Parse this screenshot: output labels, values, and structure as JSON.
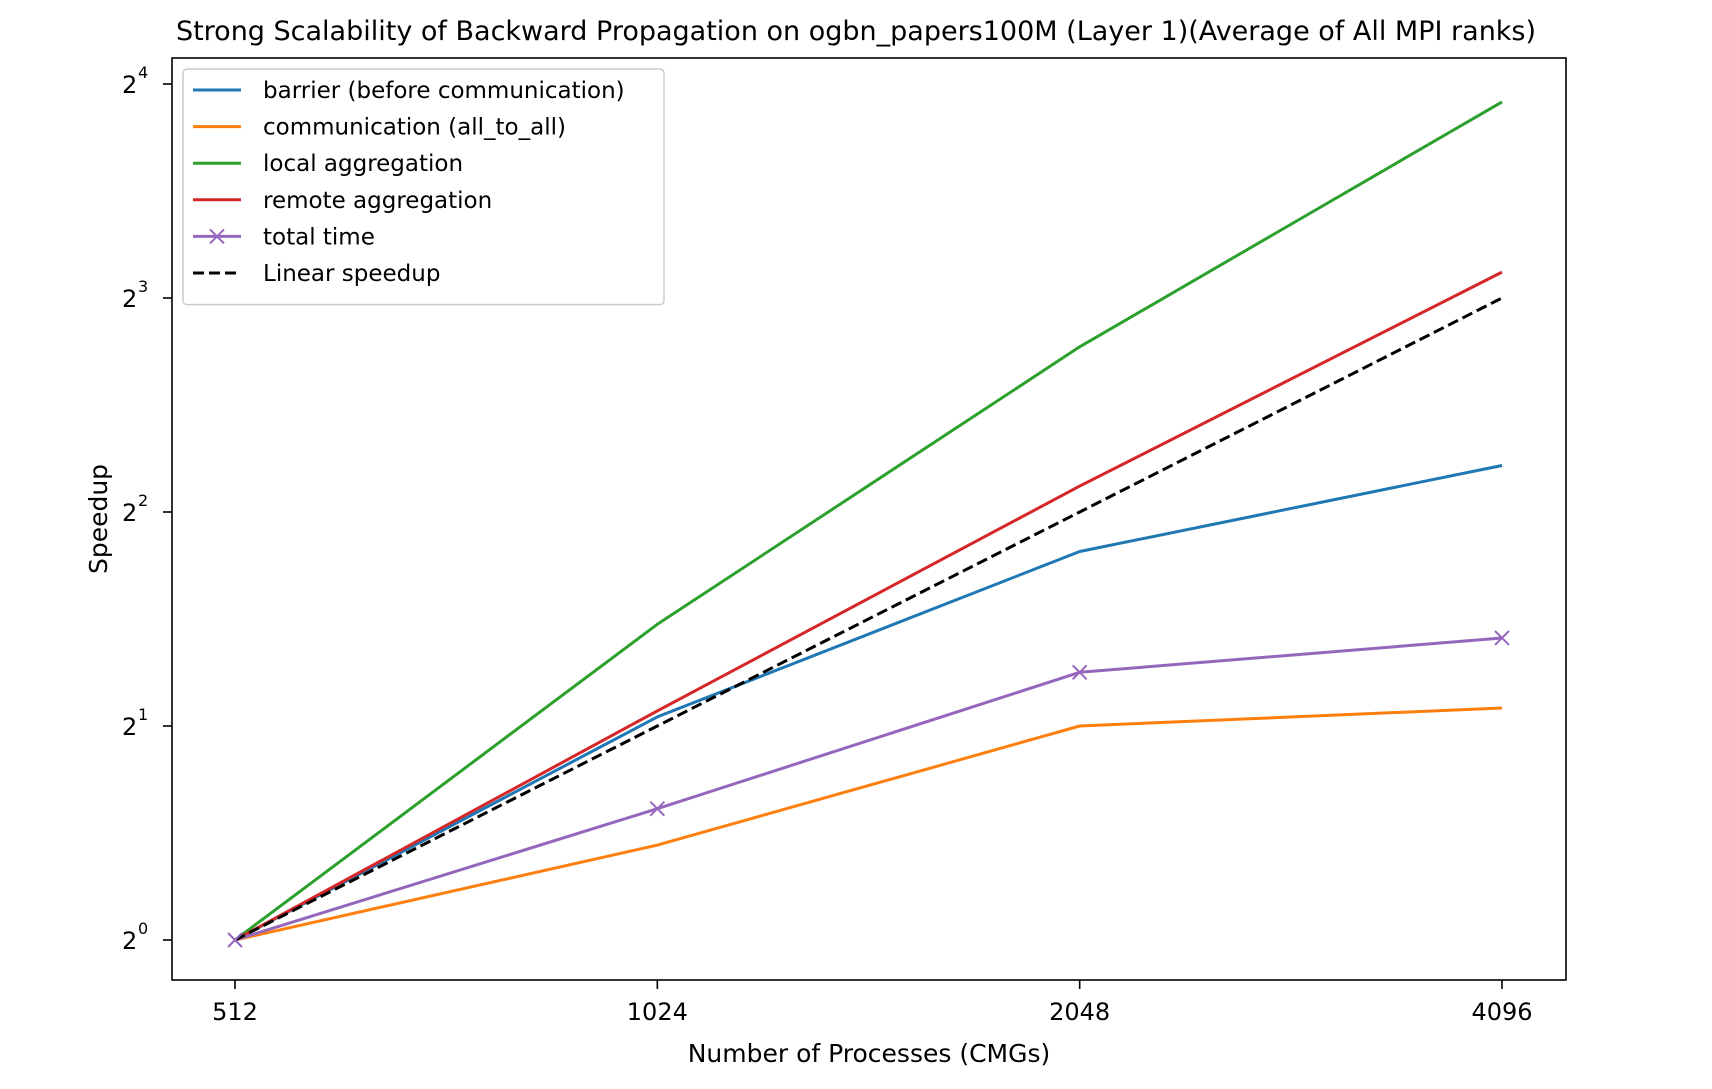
{
  "chart_data": {
    "type": "line",
    "title": "Strong Scalability of Backward Propagation on ogbn_papers100M (Layer 1)(Average of All MPI ranks)",
    "xlabel": "Number of Processes (CMGs)",
    "ylabel": "Speedup",
    "x": [
      512,
      1024,
      2048,
      4096
    ],
    "x_tick_labels": [
      "512",
      "1024",
      "2048",
      "4096"
    ],
    "y_scale": "log2",
    "ylim": [
      0.96,
      17.0
    ],
    "y_ticks": [
      {
        "value": 1,
        "base": "2",
        "exp": "0"
      },
      {
        "value": 2,
        "base": "2",
        "exp": "1"
      },
      {
        "value": 4,
        "base": "2",
        "exp": "2"
      },
      {
        "value": 8,
        "base": "2",
        "exp": "3"
      },
      {
        "value": 16,
        "base": "2",
        "exp": "4"
      }
    ],
    "grid": false,
    "legend_position": "upper-left",
    "series": [
      {
        "name": "barrier (before communication)",
        "color": "#1f77b4",
        "style": "solid",
        "marker": "none",
        "values": [
          1.0,
          2.06,
          3.52,
          4.65
        ]
      },
      {
        "name": "communication (all_to_all)",
        "color": "#ff7f0e",
        "style": "solid",
        "marker": "none",
        "values": [
          1.0,
          1.36,
          2.0,
          2.12
        ]
      },
      {
        "name": "local aggregation",
        "color": "#2ca02c",
        "style": "solid",
        "marker": "none",
        "values": [
          1.0,
          2.78,
          6.83,
          15.1
        ]
      },
      {
        "name": "remote aggregation",
        "color": "#d62728",
        "style": "solid",
        "marker": "none",
        "values": [
          1.0,
          2.1,
          4.35,
          8.7
        ]
      },
      {
        "name": "total time",
        "color": "#9467bd",
        "style": "solid",
        "marker": "x",
        "values": [
          1.0,
          1.53,
          2.38,
          2.66
        ]
      },
      {
        "name": "Linear speedup",
        "color": "#000000",
        "style": "dashed",
        "marker": "none",
        "values": [
          1,
          2,
          4,
          8
        ]
      }
    ]
  }
}
